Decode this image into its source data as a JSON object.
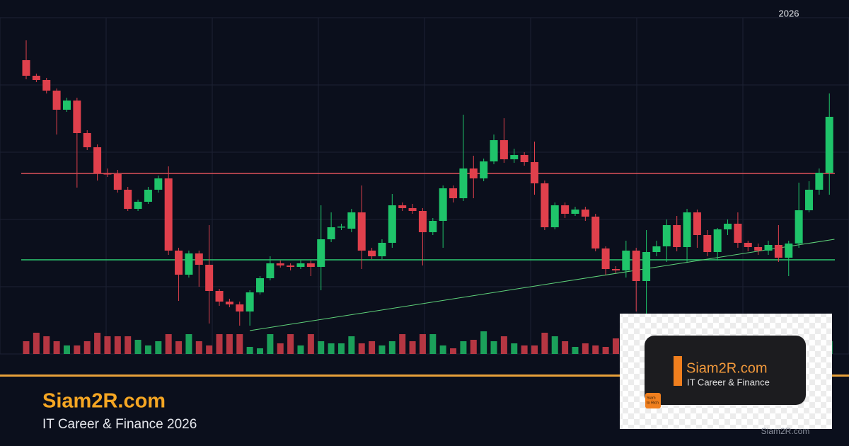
{
  "chart_data": {
    "type": "candlestick",
    "period_label": "2026",
    "ylim": [
      0,
      475
    ],
    "ygrid": [
      0,
      95,
      190,
      285,
      380,
      475
    ],
    "up_color": "#1fc46a",
    "down_color": "#e0404c",
    "open": [
      415,
      393,
      387,
      372,
      345,
      358,
      312,
      292,
      255,
      254,
      232,
      205,
      215,
      232,
      248,
      146,
      112,
      142,
      126,
      89,
      74,
      70,
      60,
      87,
      107,
      128,
      125,
      123,
      128,
      123,
      162,
      179,
      177,
      200,
      146,
      138,
      157,
      210,
      206,
      202,
      172,
      188,
      234,
      220,
      262,
      248,
      272,
      302,
      275,
      281,
      271,
      241,
      179,
      210,
      198,
      204,
      194,
      149,
      120,
      118,
      146,
      103,
      144,
      152,
      182,
      151,
      200,
      168,
      144,
      176,
      184,
      157,
      151,
      146,
      154,
      136,
      156,
      203,
      232,
      256
    ],
    "high": [
      443,
      396,
      390,
      375,
      362,
      362,
      316,
      296,
      262,
      260,
      236,
      218,
      236,
      252,
      265,
      150,
      146,
      146,
      182,
      92,
      78,
      74,
      90,
      110,
      138,
      132,
      128,
      132,
      132,
      210,
      200,
      184,
      205,
      238,
      150,
      162,
      226,
      214,
      212,
      206,
      192,
      238,
      238,
      338,
      280,
      276,
      310,
      333,
      290,
      285,
      300,
      245,
      214,
      214,
      208,
      208,
      198,
      152,
      124,
      160,
      150,
      175,
      160,
      190,
      195,
      205,
      204,
      175,
      178,
      190,
      200,
      160,
      156,
      160,
      182,
      160,
      242,
      244,
      262,
      368
    ],
    "low": [
      388,
      384,
      368,
      310,
      342,
      235,
      288,
      245,
      250,
      228,
      202,
      202,
      212,
      228,
      140,
      75,
      108,
      95,
      43,
      68,
      66,
      40,
      40,
      84,
      104,
      122,
      118,
      120,
      110,
      90,
      158,
      175,
      172,
      120,
      134,
      134,
      150,
      202,
      198,
      125,
      168,
      150,
      214,
      216,
      220,
      244,
      268,
      270,
      270,
      266,
      225,
      175,
      176,
      192,
      195,
      188,
      145,
      112,
      114,
      108,
      60,
      40,
      138,
      130,
      145,
      130,
      150,
      138,
      132,
      168,
      150,
      145,
      140,
      140,
      130,
      110,
      150,
      200,
      225,
      225
    ],
    "close": [
      393,
      387,
      372,
      345,
      358,
      312,
      292,
      255,
      254,
      232,
      205,
      215,
      232,
      248,
      146,
      112,
      142,
      126,
      89,
      74,
      70,
      60,
      87,
      107,
      128,
      125,
      123,
      128,
      123,
      162,
      179,
      180,
      200,
      146,
      138,
      157,
      210,
      206,
      202,
      172,
      188,
      234,
      220,
      262,
      248,
      272,
      302,
      275,
      281,
      271,
      241,
      179,
      210,
      198,
      204,
      194,
      149,
      120,
      118,
      146,
      103,
      144,
      152,
      182,
      151,
      200,
      168,
      144,
      176,
      184,
      157,
      151,
      146,
      154,
      136,
      156,
      203,
      232,
      256,
      335
    ],
    "volume": [
      18,
      30,
      25,
      18,
      12,
      12,
      18,
      30,
      25,
      25,
      25,
      20,
      12,
      18,
      28,
      18,
      28,
      18,
      12,
      28,
      28,
      28,
      10,
      8,
      28,
      15,
      28,
      12,
      28,
      18,
      15,
      15,
      25,
      15,
      18,
      12,
      18,
      28,
      18,
      28,
      28,
      12,
      8,
      18,
      20,
      32,
      18,
      25,
      15,
      12,
      12,
      30,
      25,
      18,
      10,
      15,
      12,
      10,
      22,
      10,
      25,
      25,
      18,
      15,
      20,
      12,
      18,
      22,
      15,
      12,
      18,
      20,
      14,
      16,
      12,
      18,
      22,
      20,
      16,
      18
    ],
    "levels": [
      {
        "value": 255,
        "color": "#e0525a"
      },
      {
        "value": 133,
        "color": "#2ecc71"
      }
    ],
    "trendline": {
      "x": [
        22,
        79.5
      ],
      "values": [
        33,
        162
      ],
      "color": "#5fd37a"
    }
  },
  "footer": {
    "brand": "Siam2R.com",
    "tagline": "IT Career & Finance 2026"
  },
  "logo_card": {
    "brand": "Siam2R.com",
    "tagline": "IT Career & Finance",
    "badge": [
      "Siam",
      "to Rich"
    ]
  },
  "watermark": "Siam2R.com"
}
